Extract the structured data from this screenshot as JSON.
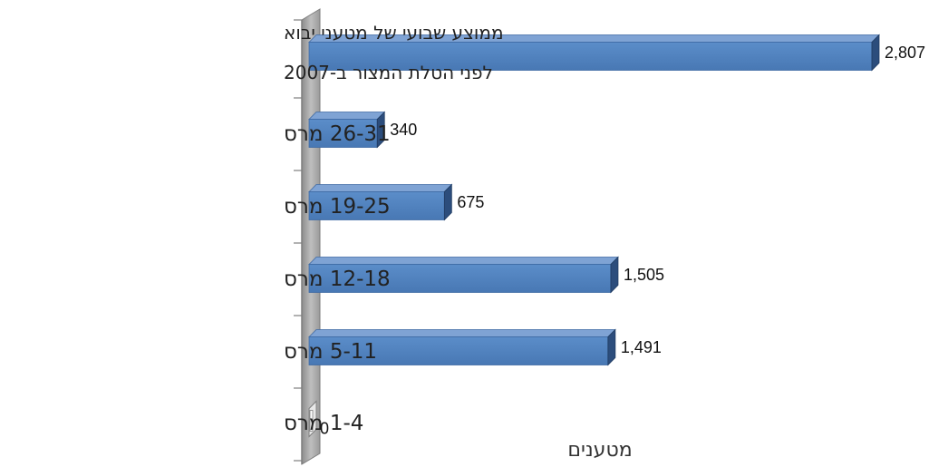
{
  "chart_data": {
    "type": "bar",
    "orientation": "horizontal",
    "style": "3d",
    "categories": [
      [
        "ממוצע שבועי של מטעני יבוא",
        "לפני הטלת המצור ב-2007"
      ],
      [
        "26-31 מרס"
      ],
      [
        "19-25 מרס"
      ],
      [
        "12-18 מרס"
      ],
      [
        "5-11 מרס"
      ],
      [
        "1-4 מרס"
      ]
    ],
    "values": [
      2807,
      340,
      675,
      1505,
      1491,
      0
    ],
    "value_labels": [
      "2,807",
      "340",
      "675",
      "1,505",
      "1,491",
      "0"
    ],
    "xlabel": "מטענים",
    "ylabel": "",
    "title": "",
    "xlim": [
      0,
      2807
    ],
    "grid": false,
    "legend": "none",
    "colors": {
      "bar_front": "#4f81bd",
      "bar_top": "#7fa3d4",
      "bar_side": "#2c4d7c",
      "wall": "#a6a6a6",
      "axis": "#7f7f7f"
    }
  }
}
